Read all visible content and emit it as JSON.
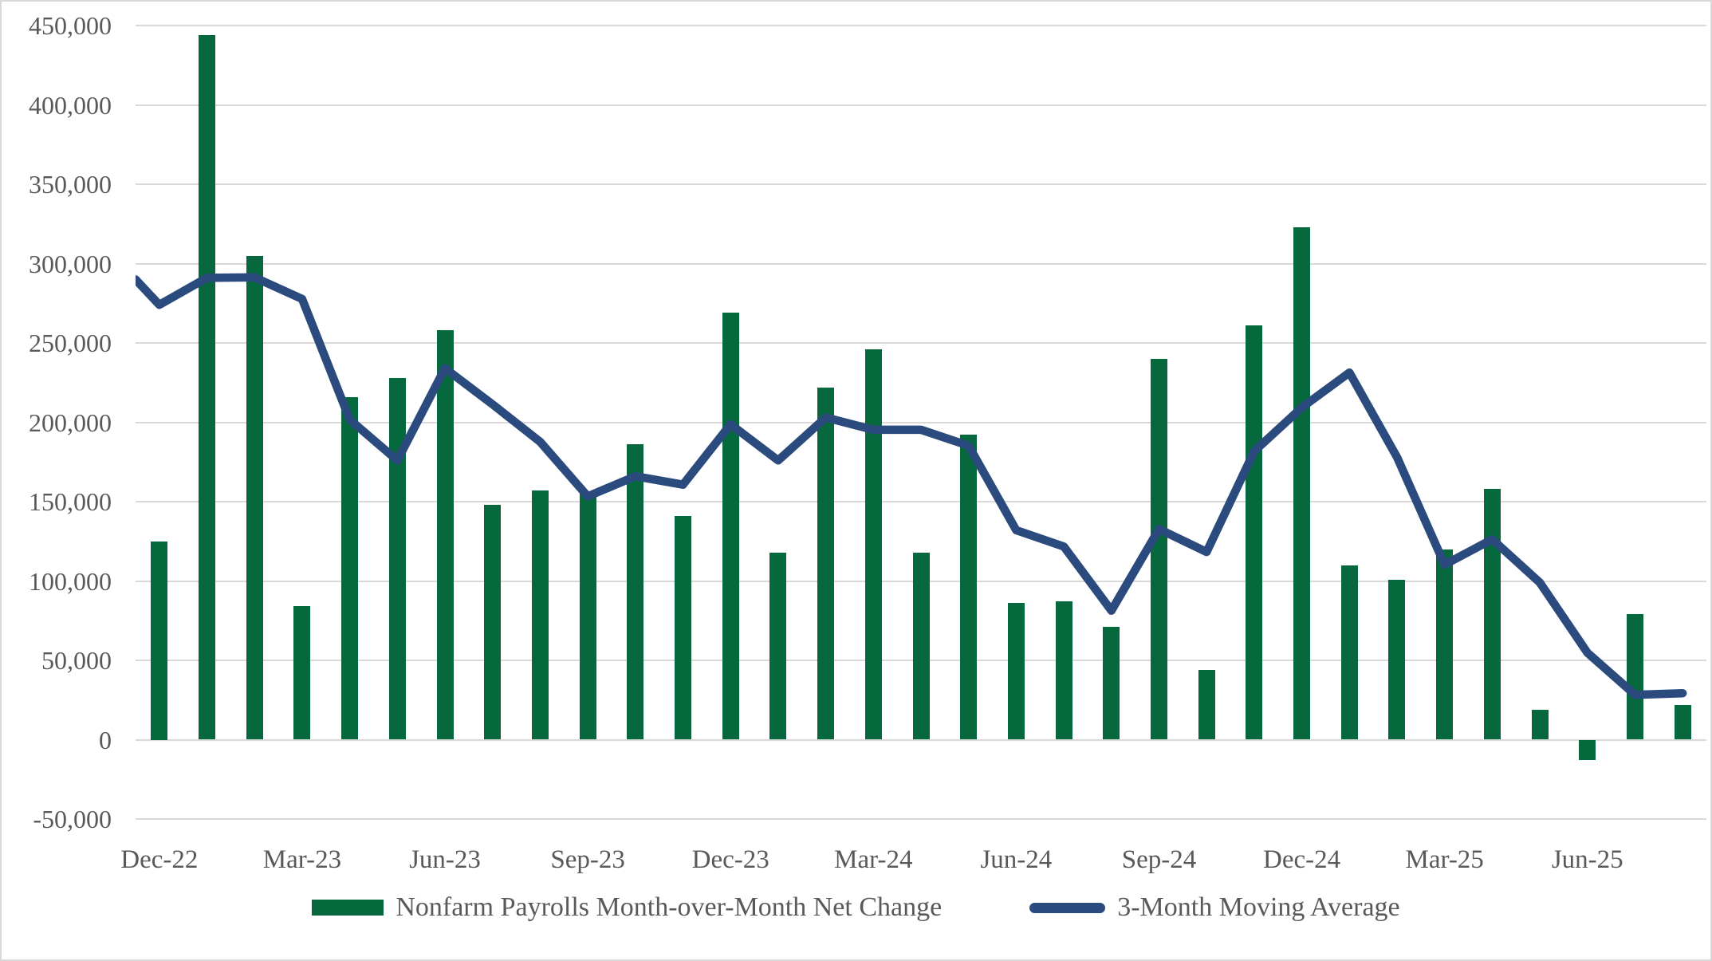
{
  "chart_data": {
    "type": "combo-bar-line",
    "months": [
      "Dec-22",
      "Jan-23",
      "Feb-23",
      "Mar-23",
      "Apr-23",
      "May-23",
      "Jun-23",
      "Jul-23",
      "Aug-23",
      "Sep-23",
      "Oct-23",
      "Nov-23",
      "Dec-23",
      "Jan-24",
      "Feb-24",
      "Mar-24",
      "Apr-24",
      "May-24",
      "Jun-24",
      "Jul-24",
      "Aug-24",
      "Sep-24",
      "Oct-24",
      "Nov-24",
      "Dec-24",
      "Jan-25",
      "Feb-25",
      "Mar-25",
      "Apr-25",
      "May-25",
      "Jun-25",
      "Jul-25",
      "Aug-25"
    ],
    "series": [
      {
        "name": "Nonfarm Payrolls Month-over-Month Net Change",
        "type": "bar",
        "color": "#06693E",
        "values": [
          125000,
          444000,
          305000,
          84000,
          216000,
          228000,
          258000,
          148000,
          157000,
          155000,
          186000,
          141000,
          269000,
          118000,
          222000,
          246000,
          118000,
          192000,
          86000,
          87000,
          71000,
          240000,
          44000,
          261000,
          323000,
          110000,
          101000,
          120000,
          158000,
          19000,
          -13000,
          79000,
          22000
        ]
      },
      {
        "name": "3-Month Moving Average",
        "type": "line",
        "color": "#2B4A7D",
        "values": [
          274000,
          291000,
          291300,
          277700,
          201700,
          176000,
          234000,
          211300,
          187700,
          153300,
          166000,
          160700,
          198700,
          176000,
          203000,
          195300,
          195300,
          185300,
          132000,
          121700,
          81300,
          132700,
          118300,
          181700,
          209300,
          231300,
          178000,
          110300,
          126300,
          99000,
          54700,
          28300,
          29300
        ],
        "lead_in_value": 290000
      }
    ],
    "y_axis": {
      "min": -50000,
      "max": 450000,
      "step": 50000,
      "tick_labels": [
        "450,000",
        "400,000",
        "350,000",
        "300,000",
        "250,000",
        "200,000",
        "150,000",
        "100,000",
        "50,000",
        "0",
        "-50,000"
      ]
    },
    "x_axis": {
      "tick_labels": [
        "Dec-22",
        "Mar-23",
        "Jun-23",
        "Sep-23",
        "Dec-23",
        "Mar-24",
        "Jun-24",
        "Sep-24",
        "Dec-24",
        "Mar-25",
        "Jun-25"
      ],
      "tick_interval": 3,
      "first_tick_index": 0
    },
    "legend": [
      {
        "label": "Nonfarm Payrolls Month-over-Month Net Change",
        "color": "#06693E",
        "shape": "rect"
      },
      {
        "label": "3-Month Moving Average",
        "color": "#2B4A7D",
        "shape": "line"
      }
    ],
    "grid": true,
    "colors": {
      "text": "#595959",
      "gridline": "#D9D9D9",
      "border": "#D9D9D9",
      "background": "#FFFFFF"
    }
  }
}
